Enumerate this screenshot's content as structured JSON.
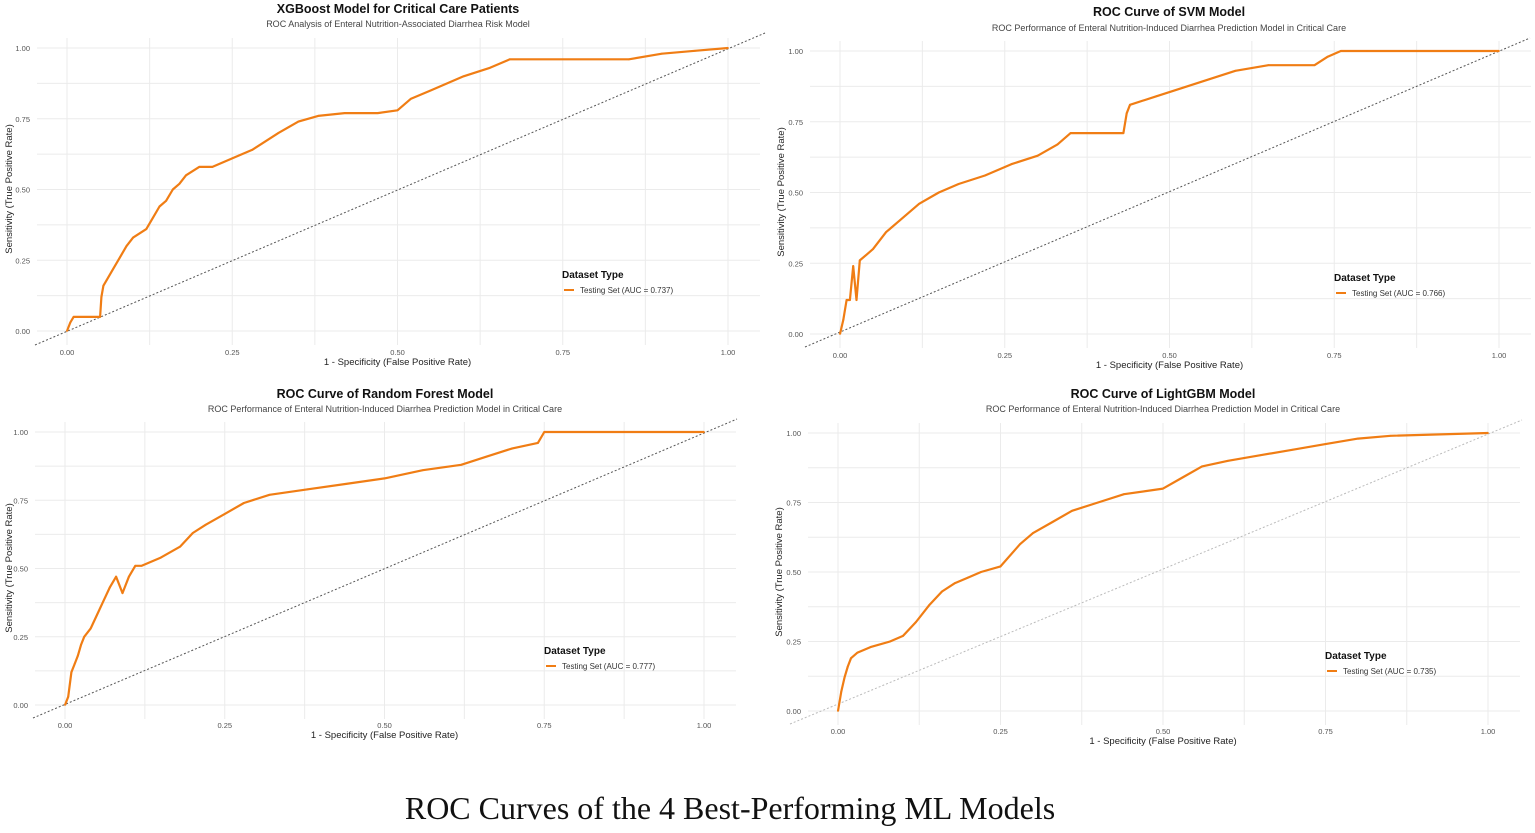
{
  "figure_caption": "ROC Curves of the 4 Best-Performing ML Models",
  "colors": {
    "curve": "#f07d14",
    "diagonal": "#555555",
    "diagonal_light": "#bbbbbb",
    "grid": "#ebebeb"
  },
  "chart_data": [
    {
      "type": "line",
      "title": "XGBoost Model for Critical Care Patients",
      "subtitle": "ROC Analysis of Enteral Nutrition-Associated Diarrhea Risk Model",
      "xlabel": "1 - Specificity (False Positive Rate)",
      "ylabel": "Sensitivity (True Positive Rate)",
      "xlim": [
        0,
        1
      ],
      "ylim": [
        0,
        1
      ],
      "xticks": [
        "0.00",
        "0.25",
        "0.50",
        "0.75",
        "1.00"
      ],
      "yticks": [
        "0.00",
        "0.25",
        "0.50",
        "0.75",
        "1.00"
      ],
      "grid": true,
      "legend": {
        "title": "Dataset Type",
        "position": "right",
        "entries": [
          "Testing Set (AUC = 0.737)"
        ]
      },
      "diagonal_style": "dark",
      "series": [
        {
          "name": "Testing Set (AUC = 0.737)",
          "x": [
            0,
            0.005,
            0.01,
            0.05,
            0.052,
            0.055,
            0.06,
            0.07,
            0.08,
            0.09,
            0.1,
            0.12,
            0.13,
            0.14,
            0.15,
            0.16,
            0.17,
            0.18,
            0.2,
            0.22,
            0.26,
            0.28,
            0.3,
            0.32,
            0.35,
            0.38,
            0.42,
            0.47,
            0.5,
            0.52,
            0.55,
            0.6,
            0.64,
            0.67,
            0.85,
            0.9,
            0.95,
            1.0
          ],
          "y": [
            0,
            0.03,
            0.05,
            0.05,
            0.12,
            0.16,
            0.18,
            0.22,
            0.26,
            0.3,
            0.33,
            0.36,
            0.4,
            0.44,
            0.46,
            0.5,
            0.52,
            0.55,
            0.58,
            0.58,
            0.62,
            0.64,
            0.67,
            0.7,
            0.74,
            0.76,
            0.77,
            0.77,
            0.78,
            0.82,
            0.85,
            0.9,
            0.93,
            0.96,
            0.96,
            0.98,
            0.99,
            1.0
          ]
        }
      ]
    },
    {
      "type": "line",
      "title": "ROC Curve of SVM Model",
      "subtitle": "ROC Performance of Enteral Nutrition-Induced Diarrhea Prediction Model in Critical Care",
      "xlabel": "1 - Specificity (False Positive Rate)",
      "ylabel": "Sensitivity (True Positive Rate)",
      "xlim": [
        0,
        1
      ],
      "ylim": [
        0,
        1
      ],
      "xticks": [
        "0.00",
        "0.25",
        "0.50",
        "0.75",
        "1.00"
      ],
      "yticks": [
        "0.00",
        "0.25",
        "0.50",
        "0.75",
        "1.00"
      ],
      "grid": true,
      "legend": {
        "title": "Dataset Type",
        "position": "right",
        "entries": [
          "Testing Set (AUC = 0.766)"
        ]
      },
      "diagonal_style": "dark",
      "series": [
        {
          "name": "Testing Set (AUC = 0.766)",
          "x": [
            0,
            0.005,
            0.01,
            0.015,
            0.02,
            0.025,
            0.03,
            0.04,
            0.05,
            0.07,
            0.09,
            0.12,
            0.15,
            0.18,
            0.22,
            0.26,
            0.3,
            0.33,
            0.35,
            0.43,
            0.435,
            0.44,
            0.48,
            0.52,
            0.56,
            0.6,
            0.65,
            0.72,
            0.74,
            0.76,
            0.8,
            1.0
          ],
          "y": [
            0,
            0.05,
            0.12,
            0.12,
            0.24,
            0.12,
            0.26,
            0.28,
            0.3,
            0.36,
            0.4,
            0.46,
            0.5,
            0.53,
            0.56,
            0.6,
            0.63,
            0.67,
            0.71,
            0.71,
            0.78,
            0.81,
            0.84,
            0.87,
            0.9,
            0.93,
            0.95,
            0.95,
            0.98,
            1.0,
            1.0,
            1.0
          ]
        }
      ]
    },
    {
      "type": "line",
      "title": "ROC Curve of Random Forest Model",
      "subtitle": "ROC Performance of Enteral Nutrition-Induced Diarrhea Prediction Model in Critical Care",
      "xlabel": "1 - Specificity (False Positive Rate)",
      "ylabel": "Sensitivity (True Positive Rate)",
      "xlim": [
        0,
        1
      ],
      "ylim": [
        0,
        1
      ],
      "xticks": [
        "0.00",
        "0.25",
        "0.50",
        "0.75",
        "1.00"
      ],
      "yticks": [
        "0.00",
        "0.25",
        "0.50",
        "0.75",
        "1.00"
      ],
      "grid": true,
      "legend": {
        "title": "Dataset Type",
        "position": "right",
        "entries": [
          "Testing Set (AUC = 0.777)"
        ]
      },
      "diagonal_style": "dark",
      "series": [
        {
          "name": "Testing Set (AUC = 0.777)",
          "x": [
            0,
            0.005,
            0.01,
            0.015,
            0.02,
            0.025,
            0.03,
            0.04,
            0.05,
            0.06,
            0.07,
            0.08,
            0.09,
            0.1,
            0.11,
            0.12,
            0.15,
            0.18,
            0.2,
            0.22,
            0.25,
            0.28,
            0.32,
            0.38,
            0.44,
            0.5,
            0.56,
            0.62,
            0.66,
            0.7,
            0.74,
            0.75,
            1.0
          ],
          "y": [
            0,
            0.03,
            0.12,
            0.15,
            0.18,
            0.22,
            0.25,
            0.28,
            0.33,
            0.38,
            0.43,
            0.47,
            0.41,
            0.47,
            0.51,
            0.51,
            0.54,
            0.58,
            0.63,
            0.66,
            0.7,
            0.74,
            0.77,
            0.79,
            0.81,
            0.83,
            0.86,
            0.88,
            0.91,
            0.94,
            0.96,
            1.0,
            1.0
          ]
        }
      ]
    },
    {
      "type": "line",
      "title": "ROC Curve of LightGBM Model",
      "subtitle": "ROC Performance of Enteral Nutrition-Induced Diarrhea Prediction Model in Critical Care",
      "xlabel": "1 - Specificity (False Positive Rate)",
      "ylabel": "Sensitivity (True Positive Rate)",
      "xlim": [
        0,
        1
      ],
      "ylim": [
        0,
        1
      ],
      "xticks": [
        "0.00",
        "0.25",
        "0.50",
        "0.75",
        "1.00"
      ],
      "yticks": [
        "0.00",
        "0.25",
        "0.50",
        "0.75",
        "1.00"
      ],
      "grid": true,
      "legend": {
        "title": "Dataset Type",
        "position": "right",
        "entries": [
          "Testing Set (AUC = 0.735)"
        ]
      },
      "diagonal_style": "light",
      "series": [
        {
          "name": "Testing Set (AUC = 0.735)",
          "x": [
            0,
            0.005,
            0.01,
            0.015,
            0.02,
            0.03,
            0.05,
            0.08,
            0.1,
            0.12,
            0.14,
            0.16,
            0.18,
            0.2,
            0.22,
            0.25,
            0.28,
            0.3,
            0.33,
            0.36,
            0.4,
            0.44,
            0.5,
            0.53,
            0.56,
            0.6,
            0.65,
            0.7,
            0.75,
            0.8,
            0.85,
            1.0
          ],
          "y": [
            0,
            0.07,
            0.12,
            0.16,
            0.19,
            0.21,
            0.23,
            0.25,
            0.27,
            0.32,
            0.38,
            0.43,
            0.46,
            0.48,
            0.5,
            0.52,
            0.6,
            0.64,
            0.68,
            0.72,
            0.75,
            0.78,
            0.8,
            0.84,
            0.88,
            0.9,
            0.92,
            0.94,
            0.96,
            0.98,
            0.99,
            1.0
          ]
        }
      ]
    }
  ]
}
